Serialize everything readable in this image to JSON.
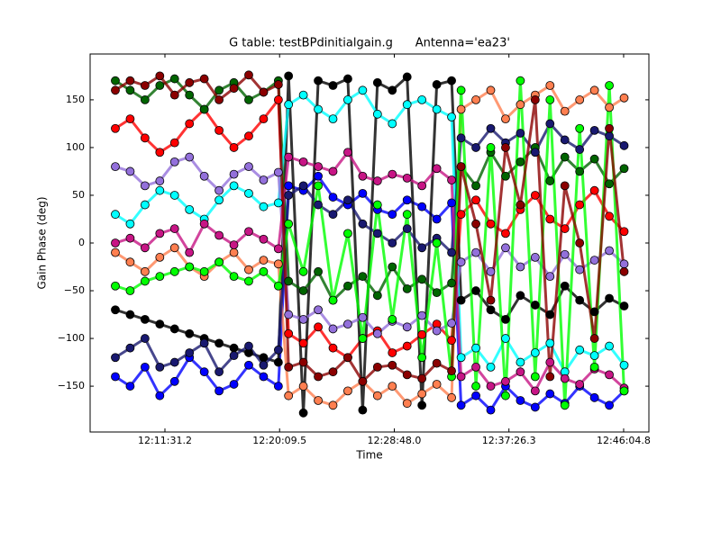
{
  "chart_data": {
    "type": "scatter",
    "title": "G table: testBPdinitialgain.g      Antenna='ea23'",
    "x_label": "Time",
    "y_label": "Gain Phase (deg)",
    "xlim": [
      43553,
      46079
    ],
    "ylim": [
      -198,
      198
    ],
    "xticks": [
      {
        "value": 43891.2,
        "label": "12:11:31.2"
      },
      {
        "value": 44409.5,
        "label": "12:20:09.5"
      },
      {
        "value": 44928.0,
        "label": "12:28:48.0"
      },
      {
        "value": 45446.3,
        "label": "12:37:26.3"
      },
      {
        "value": 45964.8,
        "label": "12:46:04.8"
      }
    ],
    "yticks": [
      {
        "value": -150,
        "label": "−150"
      },
      {
        "value": -100,
        "label": "−100"
      },
      {
        "value": -50,
        "label": "−50"
      },
      0,
      50,
      100,
      150
    ],
    "x": [
      43667,
      43734,
      43801,
      43868,
      43935,
      44002,
      44069,
      44136,
      44203,
      44270,
      44337,
      44404,
      44450,
      44517,
      44584,
      44651,
      44718,
      44785,
      44852,
      44919,
      44986,
      45053,
      45120,
      45187,
      45230,
      45297,
      45364,
      45431,
      45498,
      45565,
      45632,
      45699,
      45766,
      45833,
      45900,
      45967
    ],
    "series": [
      {
        "color": "#ff0000",
        "values": [
          120,
          130,
          110,
          95,
          105,
          125,
          140,
          118,
          100,
          112,
          130,
          150,
          -95,
          -105,
          -88,
          -110,
          -120,
          -100,
          -92,
          -115,
          -108,
          -96,
          -85,
          -102,
          30,
          45,
          20,
          10,
          35,
          50,
          25,
          15,
          40,
          55,
          28,
          12
        ]
      },
      {
        "color": "#0000ff",
        "values": [
          -140,
          -150,
          -130,
          -160,
          -145,
          -120,
          -135,
          -155,
          -148,
          -128,
          -140,
          -150,
          60,
          55,
          70,
          48,
          40,
          52,
          35,
          30,
          45,
          38,
          25,
          42,
          -170,
          -160,
          -175,
          -150,
          -165,
          -172,
          -158,
          -168,
          -150,
          -162,
          -170,
          -155
        ]
      },
      {
        "color": "#000000",
        "values": [
          -70,
          -75,
          -80,
          -85,
          -90,
          -95,
          -100,
          -105,
          -110,
          -115,
          -120,
          -125,
          175,
          -178,
          170,
          165,
          172,
          -175,
          168,
          160,
          174,
          -170,
          166,
          170,
          -60,
          -50,
          -70,
          -80,
          -55,
          -65,
          -75,
          -45,
          -60,
          -72,
          -58,
          -66
        ]
      },
      {
        "color": "#006400",
        "values": [
          170,
          160,
          150,
          165,
          172,
          155,
          140,
          160,
          168,
          150,
          158,
          170,
          -40,
          -50,
          -30,
          -60,
          -45,
          -35,
          -55,
          -25,
          -48,
          -38,
          -52,
          -42,
          80,
          60,
          95,
          70,
          85,
          100,
          65,
          90,
          75,
          88,
          62,
          78
        ]
      },
      {
        "color": "#00ffff",
        "values": [
          30,
          20,
          40,
          55,
          50,
          35,
          25,
          45,
          60,
          52,
          38,
          42,
          145,
          155,
          140,
          130,
          150,
          160,
          135,
          125,
          145,
          150,
          140,
          132,
          -120,
          -110,
          -130,
          -100,
          -125,
          -115,
          -105,
          -135,
          -112,
          -118,
          -108,
          -128
        ]
      },
      {
        "color": "#ff7f50",
        "values": [
          -10,
          -20,
          -30,
          -15,
          -5,
          -25,
          -35,
          -20,
          -10,
          -28,
          -18,
          -22,
          -160,
          -150,
          -165,
          -170,
          -155,
          -145,
          -160,
          -150,
          -168,
          -158,
          -148,
          -162,
          140,
          150,
          160,
          130,
          145,
          155,
          165,
          138,
          150,
          160,
          142,
          152
        ]
      },
      {
        "color": "#9370db",
        "values": [
          80,
          75,
          60,
          65,
          85,
          90,
          70,
          55,
          72,
          80,
          66,
          74,
          -75,
          -80,
          -70,
          -90,
          -85,
          -78,
          -95,
          -82,
          -88,
          -76,
          -92,
          -84,
          -20,
          -10,
          -30,
          -5,
          -25,
          -15,
          -35,
          -12,
          -28,
          -18,
          -8,
          -22
        ]
      },
      {
        "color": "#191970",
        "values": [
          -120,
          -110,
          -100,
          -130,
          -125,
          -115,
          -105,
          -135,
          -118,
          -108,
          -128,
          -112,
          50,
          60,
          40,
          30,
          45,
          20,
          10,
          0,
          15,
          -5,
          5,
          -10,
          110,
          100,
          120,
          105,
          115,
          95,
          125,
          108,
          98,
          118,
          112,
          102
        ]
      },
      {
        "color": "#c71585",
        "values": [
          0,
          5,
          -5,
          10,
          15,
          -10,
          20,
          8,
          -2,
          12,
          4,
          -6,
          90,
          85,
          80,
          75,
          95,
          70,
          65,
          72,
          68,
          60,
          78,
          66,
          -140,
          -130,
          -150,
          -145,
          -135,
          -155,
          -125,
          -142,
          -148,
          -132,
          -138,
          -152
        ]
      },
      {
        "color": "#00ff00",
        "values": [
          -45,
          -50,
          -40,
          -35,
          -30,
          -25,
          -30,
          -20,
          -35,
          -40,
          -30,
          -45,
          20,
          -30,
          60,
          -60,
          10,
          -100,
          40,
          -80,
          30,
          -120,
          0,
          -140,
          160,
          -150,
          100,
          -160,
          170,
          -140,
          150,
          -170,
          120,
          -130,
          165,
          -155
        ]
      },
      {
        "color": "#8b0000",
        "values": [
          160,
          170,
          165,
          175,
          155,
          168,
          172,
          150,
          162,
          176,
          158,
          166,
          -130,
          -125,
          -140,
          -135,
          -120,
          -145,
          -130,
          -128,
          -138,
          -142,
          -126,
          -134,
          80,
          20,
          -60,
          100,
          40,
          150,
          -140,
          60,
          0,
          -100,
          120,
          -30
        ]
      }
    ]
  }
}
